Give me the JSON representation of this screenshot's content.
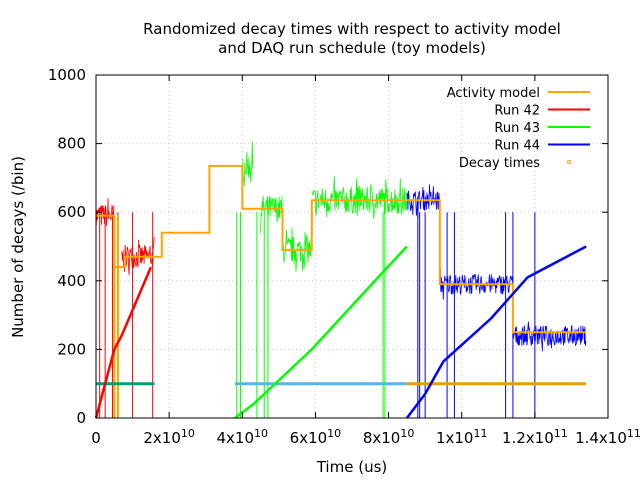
{
  "chart_data": {
    "type": "line",
    "title": [
      "Randomized decay times with respect to activity model",
      "and DAQ run schedule (toy models)"
    ],
    "xlabel": "Time (us)",
    "ylabel": "Number of decays (/bin)",
    "xlim": [
      0,
      140000000000
    ],
    "ylim": [
      0,
      1000
    ],
    "x_ticks": [
      {
        "value": 0,
        "label": "0"
      },
      {
        "value": 20000000000,
        "label": "2x10",
        "exp": "10"
      },
      {
        "value": 40000000000,
        "label": "4x10",
        "exp": "10"
      },
      {
        "value": 60000000000,
        "label": "6x10",
        "exp": "10"
      },
      {
        "value": 80000000000,
        "label": "8x10",
        "exp": "10"
      },
      {
        "value": 100000000000,
        "label": "1x10",
        "exp": "11"
      },
      {
        "value": 120000000000,
        "label": "1.2x10",
        "exp": "11"
      },
      {
        "value": 140000000000,
        "label": "1.4x10",
        "exp": "11"
      }
    ],
    "y_ticks": [
      0,
      200,
      400,
      600,
      800,
      1000
    ],
    "grid": true,
    "legend_position": "top-right",
    "colors": {
      "activity": "#ffa500",
      "run42": "#ff0000",
      "run43": "#00ff00",
      "run44": "#0000ff",
      "decay": "#ffa500",
      "run42_flag": "#009e73",
      "run43_flag": "#56b4e9",
      "run44_flag": "#e69f00"
    },
    "legend": [
      {
        "label": "Activity model",
        "key": "activity",
        "style": "line"
      },
      {
        "label": "Run 42",
        "key": "run42",
        "style": "line"
      },
      {
        "label": "Run 43",
        "key": "run43",
        "style": "line"
      },
      {
        "label": "Run 44",
        "key": "run44",
        "style": "line"
      },
      {
        "label": "Decay times",
        "key": "decay",
        "style": "dot"
      }
    ],
    "activity_model": {
      "x": [
        0,
        5000000000,
        5000000000,
        8000000000,
        8000000000,
        18000000000,
        18000000000,
        31000000000,
        31000000000,
        40000000000,
        40000000000,
        51000000000,
        51000000000,
        59000000000,
        59000000000,
        94000000000,
        94000000000,
        114000000000,
        114000000000,
        134000000000
      ],
      "y": [
        590,
        590,
        440,
        440,
        470,
        470,
        540,
        540,
        735,
        735,
        610,
        610,
        490,
        490,
        635,
        635,
        390,
        390,
        250,
        250
      ]
    },
    "run_flags": [
      {
        "key": "run42_flag",
        "x": [
          0,
          16000000000
        ],
        "y": 100
      },
      {
        "key": "run43_flag",
        "x": [
          38000000000,
          85000000000
        ],
        "y": 100
      },
      {
        "key": "run44_flag",
        "x": [
          85000000000,
          134000000000
        ],
        "y": 100
      }
    ],
    "cumulative_lines": [
      {
        "key": "run42",
        "x": [
          0,
          5000000000,
          7000000000,
          15000000000
        ],
        "y": [
          0,
          200,
          240,
          440
        ]
      },
      {
        "key": "run43",
        "x": [
          38000000000,
          43000000000,
          59000000000,
          78000000000,
          85000000000
        ],
        "y": [
          0,
          40,
          200,
          420,
          500
        ]
      },
      {
        "key": "run44",
        "x": [
          85000000000,
          90000000000,
          95000000000,
          108000000000,
          118000000000,
          134000000000
        ],
        "y": [
          0,
          70,
          165,
          290,
          410,
          500
        ]
      }
    ],
    "noisy_runs": [
      {
        "key": "run42",
        "segments": [
          {
            "x": [
              0,
              5000000000
            ],
            "level": 590
          },
          {
            "x": [
              7000000000,
              16000000000
            ],
            "level": 470
          }
        ],
        "noise": 35
      },
      {
        "key": "run43",
        "segments": [
          {
            "x": [
              40000000000,
              43000000000
            ],
            "level": 735
          },
          {
            "x": [
              45000000000,
              51000000000
            ],
            "level": 610
          },
          {
            "x": [
              51000000000,
              59000000000
            ],
            "level": 490
          },
          {
            "x": [
              59000000000,
              85000000000
            ],
            "level": 635
          }
        ],
        "noise": 40
      },
      {
        "key": "run44",
        "segments": [
          {
            "x": [
              85000000000,
              94000000000
            ],
            "level": 635
          },
          {
            "x": [
              94000000000,
              114000000000
            ],
            "level": 390
          },
          {
            "x": [
              114000000000,
              134000000000
            ],
            "level": 240
          }
        ],
        "noise": 30
      }
    ],
    "dropouts": [
      {
        "key": "run42",
        "x": [
          1000000000,
          2500000000,
          4500000000,
          6000000000,
          10000000000,
          15500000000
        ]
      },
      {
        "key": "run43",
        "x": [
          38500000000,
          39500000000,
          44000000000,
          46000000000,
          47000000000,
          78500000000,
          79000000000
        ]
      },
      {
        "key": "run44",
        "x": [
          88000000000,
          88500000000,
          90000000000,
          96000000000,
          98000000000,
          112000000000,
          114000000000,
          120000000000
        ]
      }
    ]
  }
}
